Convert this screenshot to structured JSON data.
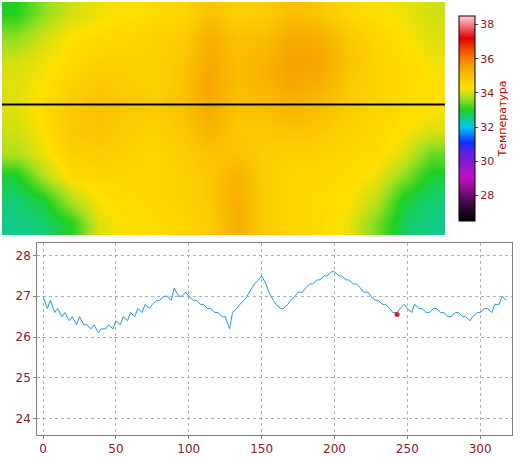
{
  "chart_data": [
    {
      "type": "heatmap",
      "tick_labels": false,
      "cells": [
        [
          33.0,
          33.6,
          34.0,
          34.2,
          34.3,
          34.4,
          34.5,
          34.9,
          34.6,
          34.7,
          35.0,
          34.8,
          34.5,
          34.3,
          34.2,
          34.0
        ],
        [
          33.6,
          34.0,
          34.3,
          34.4,
          34.5,
          34.6,
          34.7,
          35.3,
          34.9,
          35.0,
          35.4,
          35.3,
          34.8,
          34.5,
          34.3,
          34.1
        ],
        [
          34.0,
          34.2,
          34.4,
          34.6,
          34.6,
          34.6,
          34.8,
          35.4,
          35.0,
          35.2,
          35.6,
          35.5,
          34.9,
          34.6,
          34.4,
          34.2
        ],
        [
          34.1,
          34.3,
          34.6,
          34.8,
          34.7,
          34.6,
          34.9,
          35.5,
          35.0,
          35.2,
          35.5,
          35.3,
          34.8,
          34.6,
          34.4,
          34.3
        ],
        [
          34.1,
          34.4,
          34.7,
          34.9,
          34.8,
          34.7,
          34.9,
          35.4,
          34.9,
          35.0,
          35.2,
          35.0,
          34.7,
          34.5,
          34.4,
          34.3
        ],
        [
          34.0,
          34.3,
          34.8,
          34.9,
          34.7,
          34.6,
          34.8,
          35.2,
          34.8,
          34.8,
          34.9,
          34.8,
          34.6,
          34.5,
          34.3,
          34.1
        ],
        [
          33.8,
          34.2,
          34.6,
          34.7,
          34.6,
          34.5,
          34.7,
          34.9,
          34.9,
          34.7,
          34.6,
          34.6,
          34.5,
          34.4,
          34.1,
          33.4
        ],
        [
          32.9,
          33.8,
          34.4,
          34.5,
          34.5,
          34.5,
          34.6,
          34.8,
          35.2,
          34.7,
          34.5,
          34.5,
          34.4,
          34.2,
          33.6,
          32.9
        ],
        [
          32.6,
          32.9,
          33.8,
          34.3,
          34.4,
          34.5,
          34.6,
          34.8,
          35.3,
          34.7,
          34.5,
          34.4,
          34.3,
          33.9,
          32.9,
          32.6
        ],
        [
          32.5,
          32.6,
          33.0,
          34.1,
          34.3,
          34.4,
          34.5,
          34.7,
          35.3,
          34.7,
          34.5,
          34.4,
          34.2,
          33.5,
          32.7,
          32.5
        ]
      ],
      "zlim": [
        26.5,
        38.5
      ],
      "zticks": [
        28,
        30,
        32,
        34,
        36,
        38
      ],
      "colorbar_title": "Температура",
      "profile_y": 3.9
    },
    {
      "type": "line",
      "x": [
        0,
        3,
        5,
        8,
        10,
        13,
        15,
        18,
        20,
        23,
        25,
        28,
        30,
        33,
        35,
        38,
        40,
        43,
        45,
        48,
        50,
        53,
        55,
        58,
        60,
        63,
        65,
        68,
        70,
        73,
        75,
        78,
        80,
        83,
        85,
        88,
        90,
        93,
        95,
        98,
        100,
        103,
        105,
        108,
        110,
        113,
        115,
        118,
        120,
        123,
        125,
        128,
        130,
        133,
        135,
        138,
        140,
        143,
        145,
        148,
        150,
        153,
        155,
        158,
        160,
        163,
        165,
        168,
        170,
        173,
        175,
        178,
        180,
        183,
        185,
        188,
        190,
        193,
        195,
        198,
        200,
        203,
        205,
        208,
        210,
        213,
        215,
        218,
        220,
        223,
        225,
        228,
        230,
        233,
        235,
        238,
        240,
        243,
        245,
        248,
        250,
        253,
        255,
        258,
        260,
        263,
        265,
        268,
        270,
        273,
        275,
        278,
        280,
        283,
        285,
        288,
        290,
        293,
        295,
        298,
        300,
        303,
        305,
        308,
        310,
        313,
        315,
        318
      ],
      "series": [
        {
          "color": "#1e9be0",
          "line_style": "solid",
          "values": [
            27.0,
            26.7,
            26.9,
            26.6,
            26.7,
            26.5,
            26.6,
            26.4,
            26.5,
            26.3,
            26.5,
            26.3,
            26.3,
            26.2,
            26.3,
            26.1,
            26.2,
            26.2,
            26.3,
            26.2,
            26.4,
            26.3,
            26.5,
            26.4,
            26.6,
            26.5,
            26.7,
            26.6,
            26.8,
            26.7,
            26.8,
            26.9,
            26.9,
            27.0,
            27.0,
            26.9,
            27.2,
            27.0,
            27.0,
            27.1,
            27.0,
            26.9,
            26.9,
            26.8,
            26.8,
            26.7,
            26.7,
            26.6,
            26.6,
            26.5,
            26.5,
            26.2,
            26.6,
            26.7,
            26.8,
            26.9,
            27.0,
            27.2,
            27.3,
            27.4,
            27.5,
            27.3,
            27.1,
            26.9,
            26.8,
            26.7,
            26.7,
            26.8,
            26.9,
            27.0,
            27.1,
            27.1,
            27.2,
            27.3,
            27.3,
            27.4,
            27.4,
            27.5,
            27.5,
            27.6,
            27.6,
            27.5,
            27.5,
            27.4,
            27.4,
            27.3,
            27.3,
            27.2,
            27.1,
            27.1,
            27.0,
            26.9,
            26.9,
            26.8,
            26.8,
            26.7,
            26.6,
            26.6,
            26.7,
            26.8,
            26.7,
            26.6,
            26.8,
            26.7,
            26.7,
            26.6,
            26.6,
            26.7,
            26.7,
            26.6,
            26.6,
            26.5,
            26.5,
            26.6,
            26.6,
            26.5,
            26.5,
            26.4,
            26.5,
            26.6,
            26.6,
            26.7,
            26.7,
            26.6,
            26.8,
            26.8,
            27.0,
            26.9
          ]
        },
        {
          "type": "scatter",
          "marker": "circle",
          "color": "#e02020",
          "x": [
            243
          ],
          "values": [
            26.55
          ]
        }
      ],
      "xlim": [
        -4,
        322
      ],
      "ylim": [
        23.6,
        28.3
      ],
      "xticks": [
        0,
        50,
        100,
        150,
        200,
        250,
        300
      ],
      "yticks": [
        24,
        25,
        26,
        27,
        28
      ],
      "grid": true
    }
  ]
}
